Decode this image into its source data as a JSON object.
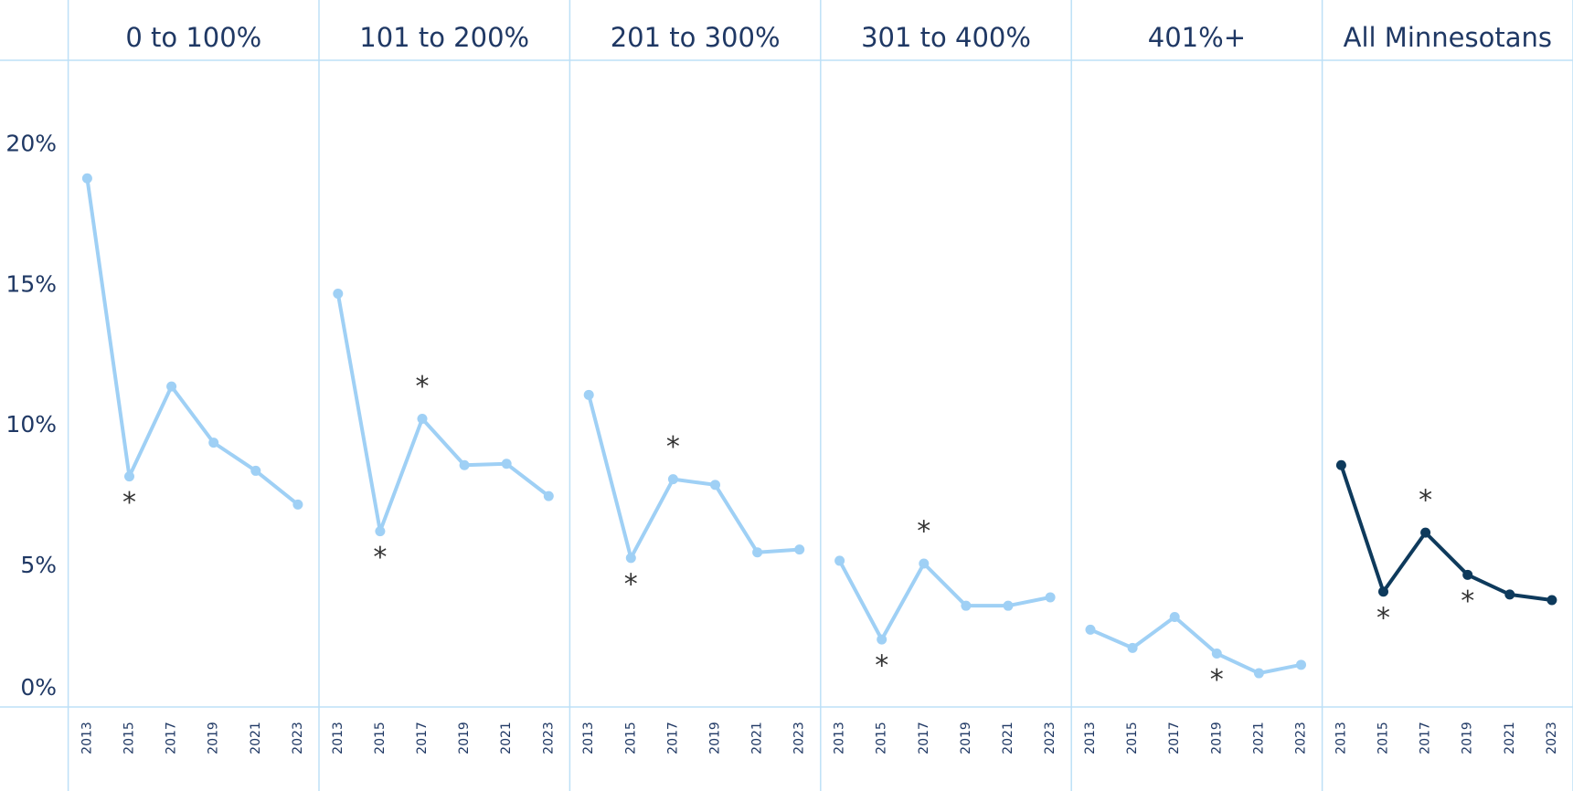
{
  "chart_data": {
    "type": "line",
    "categories": [
      "2013",
      "2015",
      "2017",
      "2019",
      "2021",
      "2023"
    ],
    "series": [
      {
        "name": "0 to 100%",
        "color": "#9fd0f5",
        "values": [
          18.8,
          8.2,
          11.4,
          9.4,
          8.4,
          7.2
        ]
      },
      {
        "name": "101 to 200%",
        "color": "#9fd0f5",
        "values": [
          14.7,
          6.25,
          10.25,
          8.6,
          8.65,
          7.5
        ]
      },
      {
        "name": "201 to 300%",
        "color": "#9fd0f5",
        "values": [
          11.1,
          5.3,
          8.1,
          7.9,
          5.5,
          5.6
        ]
      },
      {
        "name": "301 to 400%",
        "color": "#9fd0f5",
        "values": [
          5.2,
          2.4,
          5.1,
          3.6,
          3.6,
          3.9
        ]
      },
      {
        "name": "401%+",
        "color": "#9fd0f5",
        "values": [
          2.75,
          2.1,
          3.2,
          1.9,
          1.2,
          1.5
        ]
      },
      {
        "name": "All Minnesotans",
        "color": "#0e3a5c",
        "values": [
          8.6,
          4.1,
          6.2,
          4.7,
          4.0,
          3.8
        ]
      }
    ],
    "ylim": [
      0,
      23
    ],
    "yticks": [
      {
        "value": 0,
        "label": "0%"
      },
      {
        "value": 5,
        "label": "5%"
      },
      {
        "value": 10,
        "label": "10%"
      },
      {
        "value": 15,
        "label": "15%"
      },
      {
        "value": 20,
        "label": "20%"
      }
    ],
    "annotations": [
      {
        "text": "*",
        "series": 0,
        "index": 1,
        "position": "below"
      },
      {
        "text": "*",
        "series": 1,
        "index": 1,
        "position": "below"
      },
      {
        "text": "*",
        "series": 1,
        "index": 2,
        "position": "above"
      },
      {
        "text": "*",
        "series": 2,
        "index": 1,
        "position": "below"
      },
      {
        "text": "*",
        "series": 2,
        "index": 2,
        "position": "above"
      },
      {
        "text": "*",
        "series": 3,
        "index": 1,
        "position": "below"
      },
      {
        "text": "*",
        "series": 3,
        "index": 2,
        "position": "above"
      },
      {
        "text": "*",
        "series": 4,
        "index": 3,
        "position": "below"
      },
      {
        "text": "*",
        "series": 5,
        "index": 1,
        "position": "below"
      },
      {
        "text": "*",
        "series": 5,
        "index": 2,
        "position": "above"
      },
      {
        "text": "*",
        "series": 5,
        "index": 3,
        "position": "below"
      }
    ]
  }
}
